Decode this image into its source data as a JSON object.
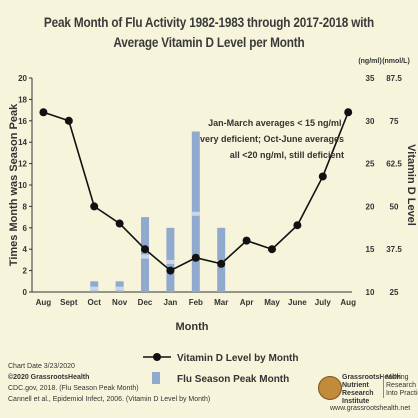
{
  "header": {
    "title_line1": "Peak Month of Flu Activity 1982-1983 through 2017-2018 with",
    "title_line2": "Average Vitamin D Level per Month"
  },
  "chart_data": {
    "type": "bar+line",
    "categories": [
      "Aug",
      "Sept",
      "Oct",
      "Nov",
      "Dec",
      "Jan",
      "Feb",
      "Mar",
      "Apr",
      "May",
      "June",
      "July",
      "Aug"
    ],
    "series": [
      {
        "name": "Flu Season Peak Month",
        "kind": "bar",
        "axis": "left",
        "values": [
          0,
          0,
          1,
          1,
          7,
          6,
          15,
          6,
          0,
          0,
          0,
          0,
          0
        ]
      },
      {
        "name": "Vitamin D Level by Month",
        "kind": "line",
        "axis": "right",
        "values": [
          31,
          30,
          20,
          18,
          15,
          12.5,
          14,
          13.3,
          16,
          15,
          17.8,
          23.5,
          31
        ]
      }
    ],
    "xlabel": "Month",
    "ylabel_left": "Times Month was Season Peak",
    "ylabel_right": "Vitamin D Level",
    "ylim_left": [
      0,
      20
    ],
    "yticks_left": [
      "0",
      "2",
      "4",
      "6",
      "8",
      "10",
      "12",
      "14",
      "16",
      "18",
      "20"
    ],
    "ylim_right": [
      10,
      35
    ],
    "yticks_right_ngml": [
      "10",
      "15",
      "20",
      "25",
      "30",
      "35"
    ],
    "yticks_right_nmol": [
      "25",
      "37.5",
      "50",
      "62.5",
      "75",
      "87.5"
    ],
    "right_unit_ngml": "(ng/ml)",
    "right_unit_nmol": "(nmol/L)",
    "annotation": [
      "Jan-March averages < 15 ng/ml,",
      "very deficient; Oct-June averages",
      "all <20 ng/ml, still deficient"
    ],
    "grid": false,
    "legend": "bottom",
    "colors": {
      "bar": "#8fa9cf",
      "bar_highlight": "#d6dfec",
      "line": "#111111",
      "axis": "#333333",
      "background": "#f6f5dc"
    }
  },
  "footer": {
    "chart_date": "Chart Date 3/23/2020",
    "copyright": "©2020 GrassrootsHealth",
    "source1": "CDC.gov, 2018.  (Flu Season Peak Month)",
    "source2": "Cannell et al., Epidemiol Infect, 2006.  (Vitamin D Level by Month)"
  },
  "logo": {
    "org": "GrassrootsHealth Nutrient Research Institute",
    "tagline": "Moving Research Into Practice",
    "website": "www.grassrootshealth.net"
  }
}
